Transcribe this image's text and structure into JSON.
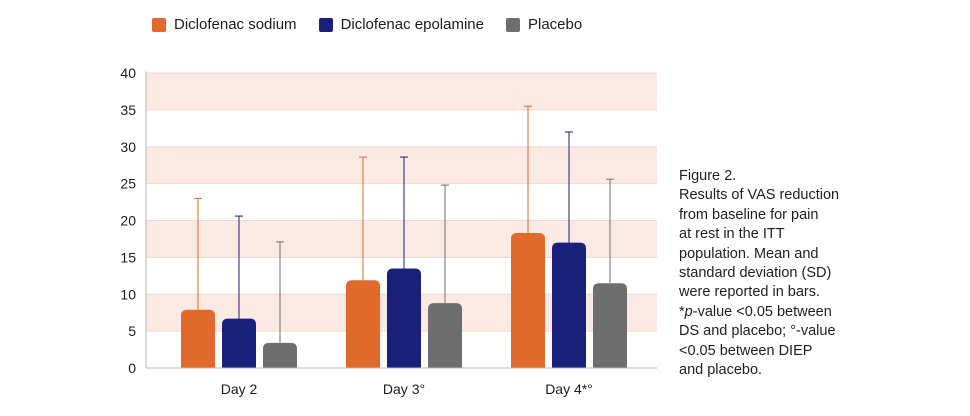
{
  "chart_data": {
    "type": "bar",
    "categories": [
      "Day 2",
      "Day 3°",
      "Day 4*°"
    ],
    "series": [
      {
        "name": "Diclofenac sodium",
        "color": "#e06a2c",
        "values": [
          7.9,
          11.9,
          18.3
        ],
        "sd_upper": [
          23.0,
          28.6,
          35.5
        ]
      },
      {
        "name": "Diclofenac epolamine",
        "color": "#18207a",
        "values": [
          6.7,
          13.5,
          17.0
        ],
        "sd_upper": [
          20.6,
          28.6,
          32.0
        ]
      },
      {
        "name": "Placebo",
        "color": "#6e6e6e",
        "values": [
          3.4,
          8.8,
          11.5
        ],
        "sd_upper": [
          17.1,
          24.8,
          25.6
        ]
      }
    ],
    "ylim": [
      0,
      40
    ],
    "yticks": [
      0,
      5,
      10,
      15,
      20,
      25,
      30,
      35,
      40
    ],
    "band_color": "#fbe9e3",
    "legend_position": "top"
  },
  "caption": {
    "title": "Figure 2.",
    "body_lines": [
      "Results of VAS reduction",
      "from baseline for pain",
      "at rest in the ITT",
      "population. Mean and",
      "standard deviation (SD)",
      "were reported in bars."
    ],
    "footnote_italic": "p",
    "footnote_star": "*",
    "footnote_after_italic": "-value <0.05 between",
    "footnote_lines": [
      "DS and placebo; °-value",
      "<0.05 between DIEP",
      "and placebo."
    ]
  }
}
